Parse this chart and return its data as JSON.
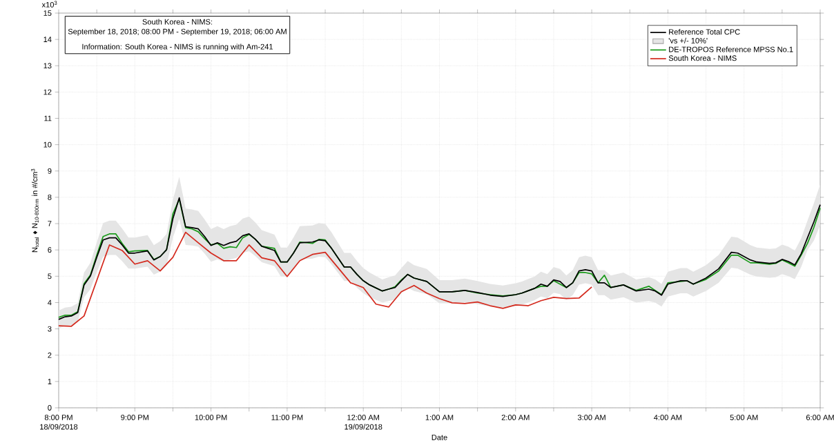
{
  "chart_data": {
    "type": "line",
    "xlabel": "Date",
    "ylabel": "N$_{total}$ ♦ N$_{10-800nm}$ in #/cm$^{3}$",
    "annotations": [
      "South Korea - NIMS:",
      "September 18, 2018; 08:00 PM - September 19, 2018; 06:00 AM",
      "Information: South Korea - NIMS is running with Am-241",
      "18/09/2018",
      "19/09/2018",
      "'vs +/- 10%'",
      "x10$^{3}$"
    ],
    "xlim": [
      "2018-09-18T20:00",
      "2018-09-19T06:00"
    ],
    "xticks": [
      {
        "value": "2018-09-18T20:00",
        "label": "8:00 PM"
      },
      {
        "value": "2018-09-18T20:30",
        "label": null
      },
      {
        "value": "2018-09-18T21:00",
        "label": "9:00 PM"
      },
      {
        "value": "2018-09-18T21:30",
        "label": null
      },
      {
        "value": "2018-09-18T22:00",
        "label": "10:00 PM"
      },
      {
        "value": "2018-09-18T22:30",
        "label": null
      },
      {
        "value": "2018-09-18T23:00",
        "label": "11:00 PM"
      },
      {
        "value": "2018-09-18T23:30",
        "label": null
      },
      {
        "value": "2018-09-19T00:00",
        "label": "12:00 AM"
      },
      {
        "value": "2018-09-19T00:30",
        "label": null
      },
      {
        "value": "2018-09-19T01:00",
        "label": "1:00 AM"
      },
      {
        "value": "2018-09-19T01:30",
        "label": null
      },
      {
        "value": "2018-09-19T02:00",
        "label": "2:00 AM"
      },
      {
        "value": "2018-09-19T02:30",
        "label": null
      },
      {
        "value": "2018-09-19T03:00",
        "label": "3:00 AM"
      },
      {
        "value": "2018-09-19T03:30",
        "label": null
      },
      {
        "value": "2018-09-19T04:00",
        "label": "4:00 AM"
      },
      {
        "value": "2018-09-19T04:30",
        "label": null
      },
      {
        "value": "2018-09-19T05:00",
        "label": "5:00 AM"
      },
      {
        "value": "2018-09-19T05:30",
        "label": null
      },
      {
        "value": "2018-09-19T06:00",
        "label": "6:00 AM"
      }
    ],
    "ylim": [
      0,
      15
    ],
    "yticks": [
      0,
      1,
      2,
      3,
      4,
      5,
      6,
      7,
      8,
      9,
      10,
      11,
      12,
      13,
      14,
      15
    ],
    "grid": true,
    "legend": "top right",
    "x": [
      "2018-09-18T20:00",
      "2018-09-18T20:05",
      "2018-09-18T20:10",
      "2018-09-18T20:15",
      "2018-09-18T20:20",
      "2018-09-18T20:25",
      "2018-09-18T20:30",
      "2018-09-18T20:35",
      "2018-09-18T20:40",
      "2018-09-18T20:45",
      "2018-09-18T20:50",
      "2018-09-18T20:55",
      "2018-09-18T21:00",
      "2018-09-18T21:10",
      "2018-09-18T21:15",
      "2018-09-18T21:20",
      "2018-09-18T21:25",
      "2018-09-18T21:30",
      "2018-09-18T21:35",
      "2018-09-18T21:40",
      "2018-09-18T21:45",
      "2018-09-18T21:50",
      "2018-09-18T21:55",
      "2018-09-18T22:00",
      "2018-09-18T22:05",
      "2018-09-18T22:10",
      "2018-09-18T22:15",
      "2018-09-18T22:20",
      "2018-09-18T22:25",
      "2018-09-18T22:30",
      "2018-09-18T22:35",
      "2018-09-18T22:40",
      "2018-09-18T22:50",
      "2018-09-18T22:55",
      "2018-09-18T23:00",
      "2018-09-18T23:05",
      "2018-09-18T23:10",
      "2018-09-18T23:20",
      "2018-09-18T23:25",
      "2018-09-18T23:30",
      "2018-09-18T23:35",
      "2018-09-18T23:45",
      "2018-09-18T23:50",
      "2018-09-18T23:55",
      "2018-09-19T00:00",
      "2018-09-19T00:05",
      "2018-09-19T00:15",
      "2018-09-19T00:20",
      "2018-09-19T00:25",
      "2018-09-19T00:30",
      "2018-09-19T00:35",
      "2018-09-19T00:40",
      "2018-09-19T00:50",
      "2018-09-19T01:00",
      "2018-09-19T01:10",
      "2018-09-19T01:20",
      "2018-09-19T01:30",
      "2018-09-19T01:40",
      "2018-09-19T01:50",
      "2018-09-19T02:00",
      "2018-09-19T02:05",
      "2018-09-19T02:15",
      "2018-09-19T02:20",
      "2018-09-19T02:25",
      "2018-09-19T02:30",
      "2018-09-19T02:35",
      "2018-09-19T02:40",
      "2018-09-19T02:45",
      "2018-09-19T02:50",
      "2018-09-19T02:55",
      "2018-09-19T03:00",
      "2018-09-19T03:05",
      "2018-09-19T03:10",
      "2018-09-19T03:15",
      "2018-09-19T03:25",
      "2018-09-19T03:35",
      "2018-09-19T03:45",
      "2018-09-19T03:50",
      "2018-09-19T03:55",
      "2018-09-19T04:00",
      "2018-09-19T04:10",
      "2018-09-19T04:15",
      "2018-09-19T04:20",
      "2018-09-19T04:30",
      "2018-09-19T04:40",
      "2018-09-19T04:50",
      "2018-09-19T04:55",
      "2018-09-19T05:05",
      "2018-09-19T05:10",
      "2018-09-19T05:20",
      "2018-09-19T05:25",
      "2018-09-19T05:30",
      "2018-09-19T05:35",
      "2018-09-19T05:40",
      "2018-09-19T05:45",
      "2018-09-19T05:50",
      "2018-09-19T05:55",
      "2018-09-19T06:00"
    ],
    "series": [
      {
        "name": "Reference Total CPC",
        "color": "#000000",
        "values": [
          3.36,
          3.46,
          3.49,
          3.62,
          4.67,
          5.01,
          5.72,
          6.38,
          6.46,
          6.46,
          6.19,
          5.88,
          5.88,
          5.96,
          5.62,
          5.75,
          6.01,
          7.19,
          7.98,
          6.88,
          6.85,
          6.8,
          6.51,
          6.17,
          6.27,
          6.17,
          6.27,
          6.33,
          6.54,
          6.61,
          6.4,
          6.14,
          5.98,
          5.54,
          5.54,
          5.88,
          6.27,
          6.3,
          6.38,
          6.35,
          6.06,
          5.35,
          5.35,
          5.07,
          4.83,
          4.67,
          4.44,
          4.51,
          4.57,
          4.83,
          5.07,
          4.93,
          4.8,
          4.41,
          4.41,
          4.46,
          4.38,
          4.28,
          4.23,
          4.3,
          4.36,
          4.54,
          4.7,
          4.62,
          4.86,
          4.8,
          4.57,
          4.75,
          5.2,
          5.25,
          5.2,
          4.75,
          4.75,
          4.57,
          4.67,
          4.44,
          4.51,
          4.44,
          4.28,
          4.7,
          4.83,
          4.83,
          4.7,
          4.93,
          5.28,
          5.91,
          5.88,
          5.62,
          5.54,
          5.49,
          5.51,
          5.64,
          5.56,
          5.43,
          5.85,
          6.46,
          7.06,
          7.72
        ],
        "lower": [
          3.02,
          3.11,
          3.14,
          3.26,
          4.2,
          4.51,
          5.15,
          5.74,
          5.81,
          5.81,
          5.57,
          5.29,
          5.29,
          5.36,
          5.06,
          5.18,
          5.41,
          6.47,
          7.18,
          6.19,
          6.17,
          6.12,
          5.86,
          5.55,
          5.64,
          5.55,
          5.64,
          5.7,
          5.89,
          5.95,
          5.76,
          5.53,
          5.38,
          4.99,
          4.99,
          5.29,
          5.64,
          5.67,
          5.74,
          5.72,
          5.45,
          4.82,
          4.82,
          4.56,
          4.35,
          4.2,
          4.0,
          4.06,
          4.11,
          4.35,
          4.56,
          4.44,
          4.32,
          3.97,
          3.97,
          4.01,
          3.94,
          3.85,
          3.81,
          3.87,
          3.92,
          4.09,
          4.23,
          4.16,
          4.37,
          4.32,
          4.11,
          4.28,
          4.68,
          4.73,
          4.68,
          4.28,
          4.28,
          4.11,
          4.2,
          4.0,
          4.06,
          4.0,
          3.85,
          4.23,
          4.35,
          4.35,
          4.23,
          4.44,
          4.75,
          5.32,
          5.29,
          5.06,
          4.99,
          4.94,
          4.96,
          5.08,
          5.0,
          4.89,
          5.35,
          6.0,
          6.35,
          6.95
        ],
        "upper": [
          3.7,
          3.81,
          3.84,
          3.98,
          5.14,
          5.51,
          6.29,
          7.02,
          7.11,
          7.11,
          6.81,
          6.47,
          6.47,
          6.56,
          6.18,
          6.33,
          6.61,
          7.91,
          8.78,
          7.57,
          7.54,
          7.48,
          7.16,
          6.79,
          6.9,
          6.79,
          6.9,
          6.96,
          7.19,
          7.27,
          7.04,
          6.75,
          6.58,
          6.09,
          6.09,
          6.47,
          6.9,
          6.93,
          7.02,
          6.99,
          6.67,
          5.89,
          5.89,
          5.58,
          5.31,
          5.14,
          4.88,
          4.96,
          5.03,
          5.31,
          5.58,
          5.42,
          5.28,
          4.85,
          4.85,
          4.91,
          4.82,
          4.71,
          4.65,
          4.73,
          4.8,
          4.99,
          5.17,
          5.08,
          5.35,
          5.28,
          5.03,
          5.23,
          5.72,
          5.78,
          5.72,
          5.23,
          5.23,
          5.03,
          5.14,
          4.88,
          4.96,
          4.88,
          4.71,
          5.17,
          5.31,
          5.31,
          5.17,
          5.42,
          5.81,
          6.5,
          6.47,
          6.18,
          6.09,
          6.04,
          6.06,
          6.2,
          6.12,
          5.97,
          6.44,
          7.11,
          7.77,
          8.49
        ]
      },
      {
        "name": "DE-TROPOS Reference MPSS No.1",
        "color": "#1a9a1a",
        "values": [
          3.44,
          3.52,
          3.52,
          3.65,
          4.72,
          5.05,
          5.8,
          6.51,
          6.61,
          6.61,
          6.25,
          5.93,
          5.96,
          5.98,
          5.64,
          5.75,
          6.01,
          7.37,
          7.93,
          6.85,
          6.8,
          6.69,
          6.43,
          6.19,
          6.25,
          6.06,
          6.12,
          6.09,
          6.46,
          6.59,
          6.4,
          6.14,
          6.06,
          5.54,
          5.54,
          5.88,
          6.3,
          6.25,
          6.4,
          6.38,
          6.06,
          5.35,
          5.35,
          5.07,
          4.83,
          4.67,
          4.44,
          4.51,
          4.6,
          4.86,
          5.07,
          4.93,
          4.8,
          4.41,
          4.41,
          4.46,
          4.36,
          4.3,
          4.25,
          4.3,
          4.36,
          4.54,
          4.62,
          4.62,
          4.83,
          4.7,
          4.57,
          4.75,
          5.14,
          5.14,
          5.09,
          4.75,
          5.04,
          4.57,
          4.67,
          4.46,
          4.62,
          4.46,
          4.3,
          4.75,
          4.8,
          4.83,
          4.7,
          4.88,
          5.2,
          5.8,
          5.8,
          5.51,
          5.51,
          5.46,
          5.49,
          5.62,
          5.51,
          5.38,
          5.8,
          6.25,
          6.85,
          7.59
        ]
      },
      {
        "name": "South Korea - NIMS",
        "color": "#d42a1e",
        "x": [
          "2018-09-18T20:00",
          "2018-09-18T20:10",
          "2018-09-18T20:20",
          "2018-09-18T20:40",
          "2018-09-18T20:50",
          "2018-09-18T21:00",
          "2018-09-18T21:10",
          "2018-09-18T21:20",
          "2018-09-18T21:30",
          "2018-09-18T21:40",
          "2018-09-18T21:50",
          "2018-09-18T22:00",
          "2018-09-18T22:10",
          "2018-09-18T22:20",
          "2018-09-18T22:30",
          "2018-09-18T22:40",
          "2018-09-18T22:50",
          "2018-09-18T23:00",
          "2018-09-18T23:10",
          "2018-09-18T23:20",
          "2018-09-18T23:30",
          "2018-09-18T23:50",
          "2018-09-19T00:00",
          "2018-09-19T00:10",
          "2018-09-19T00:20",
          "2018-09-19T00:30",
          "2018-09-19T00:40",
          "2018-09-19T00:50",
          "2018-09-19T01:00",
          "2018-09-19T01:10",
          "2018-09-19T01:20",
          "2018-09-19T01:30",
          "2018-09-19T01:40",
          "2018-09-19T01:50",
          "2018-09-19T02:00",
          "2018-09-19T02:10",
          "2018-09-19T02:20",
          "2018-09-19T02:30",
          "2018-09-19T02:40",
          "2018-09-19T02:50",
          "2018-09-19T03:00"
        ],
        "values": [
          3.12,
          3.1,
          3.49,
          6.19,
          5.98,
          5.46,
          5.59,
          5.2,
          5.72,
          6.67,
          6.27,
          5.88,
          5.59,
          5.59,
          6.19,
          5.7,
          5.59,
          4.99,
          5.59,
          5.83,
          5.91,
          4.75,
          4.57,
          3.94,
          3.83,
          4.41,
          4.65,
          4.36,
          4.15,
          3.99,
          3.96,
          4.02,
          3.88,
          3.78,
          3.91,
          3.88,
          4.07,
          4.2,
          4.15,
          4.17,
          4.59
        ]
      }
    ]
  }
}
